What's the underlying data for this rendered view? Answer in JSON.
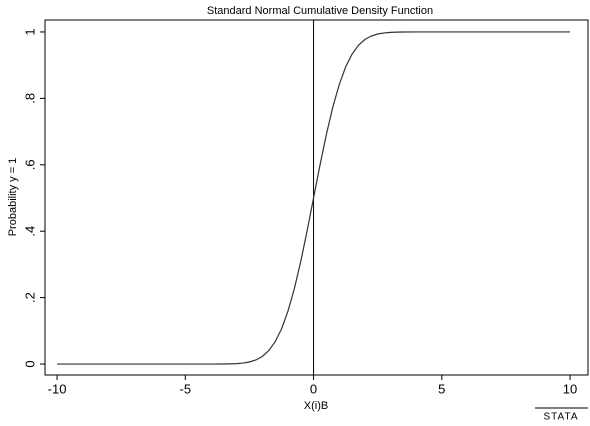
{
  "chart_data": {
    "type": "line",
    "title": "Standard Normal Cumulative Density Function",
    "x_label": "X(i)B",
    "y_label": "Probability y = 1",
    "x": [
      -10,
      -4,
      -3.5,
      -3.25,
      -3,
      -2.75,
      -2.5,
      -2.25,
      -2,
      -1.75,
      -1.5,
      -1.25,
      -1,
      -0.75,
      -0.5,
      -0.25,
      0,
      0.25,
      0.5,
      0.75,
      1,
      1.25,
      1.5,
      1.75,
      2,
      2.25,
      2.5,
      2.75,
      3,
      3.25,
      3.5,
      4,
      10
    ],
    "values": [
      0,
      0,
      0.0002,
      0.0006,
      0.0013,
      0.003,
      0.0062,
      0.0122,
      0.0228,
      0.0401,
      0.0668,
      0.1056,
      0.1587,
      0.2266,
      0.3085,
      0.4013,
      0.5,
      0.5987,
      0.6915,
      0.7734,
      0.8413,
      0.8944,
      0.9332,
      0.9599,
      0.9772,
      0.9878,
      0.9938,
      0.997,
      0.9987,
      0.9994,
      0.9998,
      1,
      1
    ],
    "color": "#333333",
    "xline": 0,
    "xlim": [
      -10.47,
      10.7
    ],
    "ylim": [
      -0.033,
      1.036
    ],
    "xticks": [
      -10,
      -5,
      0,
      5,
      10
    ],
    "yticks": [
      0,
      {
        "value": 0.2,
        "label": ".2"
      },
      {
        "value": 0.4,
        "label": ".4"
      },
      {
        "value": 0.6,
        "label": ".6"
      },
      {
        "value": 0.8,
        "label": ".8"
      },
      1
    ],
    "logo": "STATA"
  }
}
